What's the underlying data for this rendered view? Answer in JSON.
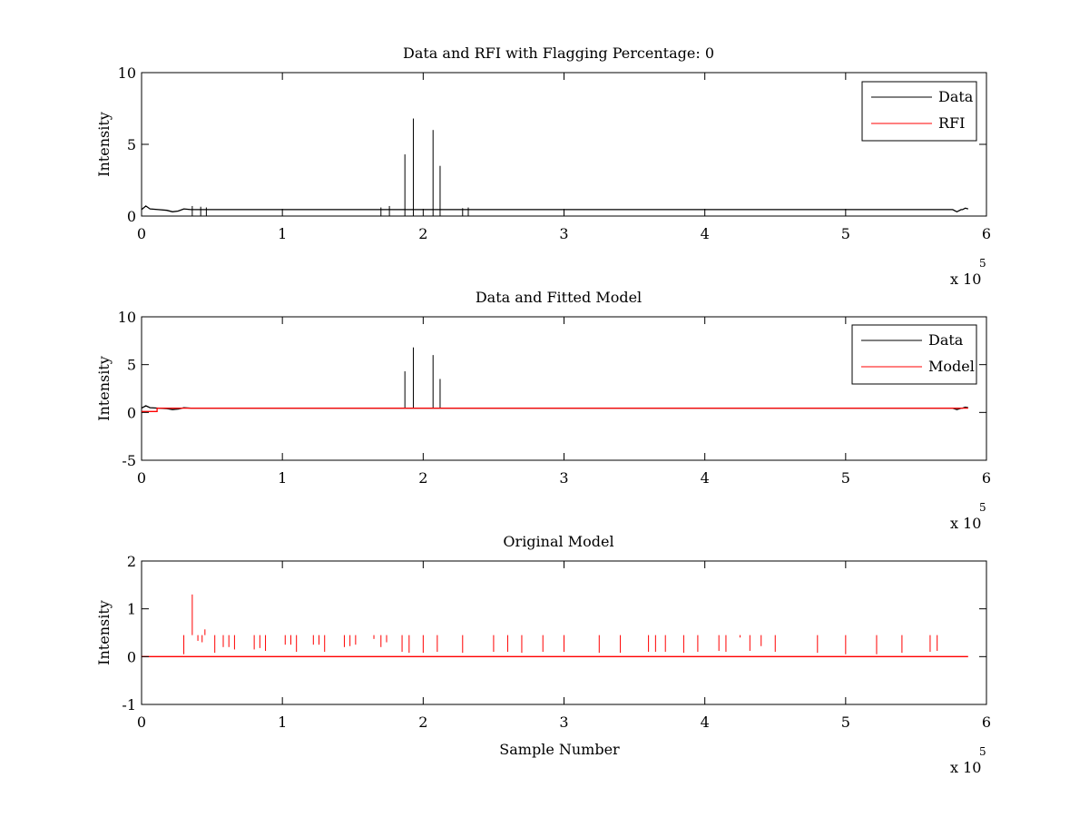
{
  "figure": {
    "background": "#ffffff"
  },
  "chart_data": [
    {
      "type": "line",
      "title": "Data and RFI with Flagging Percentage: 0",
      "xlabel": "",
      "ylabel": "Intensity",
      "xlim": [
        0,
        600000
      ],
      "ylim": [
        0,
        10
      ],
      "x_ticks": [
        "0",
        "1",
        "2",
        "3",
        "4",
        "5",
        "6"
      ],
      "y_ticks": [
        "0",
        "5",
        "10"
      ],
      "x_exponent_label": "x 10",
      "x_exponent": "5",
      "grid": false,
      "legend_position": "top-right",
      "series": [
        {
          "name": "Data",
          "color": "#000000",
          "baseline": [
            [
              0,
              0.45
            ],
            [
              3000,
              0.7
            ],
            [
              6000,
              0.5
            ],
            [
              12000,
              0.45
            ],
            [
              18000,
              0.4
            ],
            [
              22000,
              0.3
            ],
            [
              26000,
              0.35
            ],
            [
              30000,
              0.5
            ],
            [
              35000,
              0.45
            ],
            [
              583000,
              0.45
            ],
            [
              576000,
              0.45
            ],
            [
              579000,
              0.3
            ],
            [
              582000,
              0.45
            ],
            [
              585000,
              0.55
            ],
            [
              587000,
              0.5
            ]
          ],
          "spikes": [
            [
              187000,
              4.3
            ],
            [
              193000,
              6.8
            ],
            [
              207000,
              6.0
            ],
            [
              212000,
              3.5
            ],
            [
              36000,
              0.7
            ],
            [
              42000,
              0.65
            ],
            [
              46000,
              0.6
            ],
            [
              170000,
              0.6
            ],
            [
              176000,
              0.7
            ],
            [
              228000,
              0.55
            ],
            [
              232000,
              0.6
            ]
          ]
        },
        {
          "name": "RFI",
          "color": "#ff0000",
          "baseline": [],
          "spikes": []
        }
      ]
    },
    {
      "type": "line",
      "title": "Data and Fitted Model",
      "xlabel": "",
      "ylabel": "Intensity",
      "xlim": [
        0,
        600000
      ],
      "ylim": [
        -5,
        10
      ],
      "x_ticks": [
        "0",
        "1",
        "2",
        "3",
        "4",
        "5",
        "6"
      ],
      "y_ticks": [
        "-5",
        "0",
        "5",
        "10"
      ],
      "x_exponent_label": "x 10",
      "x_exponent": "5",
      "grid": false,
      "legend_position": "top-right",
      "series": [
        {
          "name": "Data",
          "color": "#000000",
          "baseline": [
            [
              0,
              0.45
            ],
            [
              3000,
              0.7
            ],
            [
              6000,
              0.5
            ],
            [
              12000,
              0.45
            ],
            [
              18000,
              0.4
            ],
            [
              22000,
              0.3
            ],
            [
              26000,
              0.35
            ],
            [
              30000,
              0.5
            ],
            [
              35000,
              0.45
            ],
            [
              583000,
              0.45
            ],
            [
              576000,
              0.45
            ],
            [
              579000,
              0.3
            ],
            [
              582000,
              0.45
            ],
            [
              585000,
              0.55
            ],
            [
              587000,
              0.5
            ]
          ],
          "spikes": [
            [
              187000,
              4.3
            ],
            [
              193000,
              6.8
            ],
            [
              207000,
              6.0
            ],
            [
              212000,
              3.5
            ]
          ]
        },
        {
          "name": "Model",
          "color": "#ff0000",
          "baseline": [
            [
              0,
              0.1
            ],
            [
              11000,
              0.1
            ],
            [
              11000,
              0.45
            ],
            [
              587000,
              0.45
            ]
          ],
          "spikes": []
        }
      ]
    },
    {
      "type": "line",
      "title": "Original Model",
      "xlabel": "Sample Number",
      "ylabel": "Intensity",
      "xlim": [
        0,
        600000
      ],
      "ylim": [
        -1,
        2
      ],
      "x_ticks": [
        "0",
        "1",
        "2",
        "3",
        "4",
        "5",
        "6"
      ],
      "y_ticks": [
        "-1",
        "0",
        "1",
        "2"
      ],
      "x_exponent_label": "x 10",
      "x_exponent": "5",
      "grid": false,
      "legend_position": "none",
      "series": [
        {
          "name": "",
          "color": "#ff0000",
          "baseline": [
            [
              0,
              0
            ],
            [
              587000,
              0
            ]
          ],
          "spikes": [
            [
              30000,
              0.05
            ],
            [
              36000,
              1.3
            ],
            [
              40000,
              0.33
            ],
            [
              43000,
              0.3
            ],
            [
              45000,
              0.57
            ],
            [
              52000,
              0.08
            ],
            [
              58000,
              0.2
            ],
            [
              62000,
              0.2
            ],
            [
              66000,
              0.15
            ],
            [
              80000,
              0.15
            ],
            [
              84000,
              0.18
            ],
            [
              88000,
              0.12
            ],
            [
              102000,
              0.25
            ],
            [
              106000,
              0.25
            ],
            [
              110000,
              0.1
            ],
            [
              122000,
              0.25
            ],
            [
              126000,
              0.25
            ],
            [
              130000,
              0.1
            ],
            [
              144000,
              0.2
            ],
            [
              148000,
              0.22
            ],
            [
              152000,
              0.25
            ],
            [
              165000,
              0.37
            ],
            [
              170000,
              0.2
            ],
            [
              174000,
              0.3
            ],
            [
              185000,
              0.1
            ],
            [
              190000,
              0.08
            ],
            [
              200000,
              0.08
            ],
            [
              210000,
              0.1
            ],
            [
              228000,
              0.08
            ],
            [
              250000,
              0.1
            ],
            [
              260000,
              0.1
            ],
            [
              270000,
              0.08
            ],
            [
              285000,
              0.1
            ],
            [
              300000,
              0.1
            ],
            [
              325000,
              0.08
            ],
            [
              340000,
              0.08
            ],
            [
              360000,
              0.1
            ],
            [
              365000,
              0.1
            ],
            [
              372000,
              0.1
            ],
            [
              385000,
              0.08
            ],
            [
              395000,
              0.1
            ],
            [
              410000,
              0.12
            ],
            [
              415000,
              0.1
            ],
            [
              425000,
              0.4
            ],
            [
              432000,
              0.12
            ],
            [
              440000,
              0.22
            ],
            [
              450000,
              0.1
            ],
            [
              480000,
              0.08
            ],
            [
              500000,
              0.05
            ],
            [
              522000,
              0.05
            ],
            [
              540000,
              0.08
            ],
            [
              560000,
              0.1
            ],
            [
              565000,
              0.12
            ]
          ]
        }
      ]
    }
  ]
}
